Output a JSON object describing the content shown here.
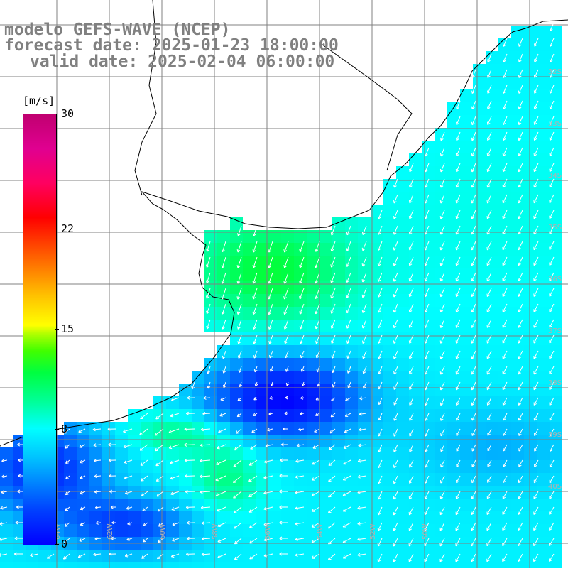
{
  "title": {
    "line1": "modelo GEFS-WAVE (NCEP)",
    "line2": "forecast date: 2025-01-23 18:00:00",
    "line3": "valid date: 2025-02-04 06:00:00"
  },
  "colorbar": {
    "unit": "[m/s]",
    "ticks": [
      {
        "label": "30",
        "value": 30
      },
      {
        "label": "22",
        "value": 22
      },
      {
        "label": "15",
        "value": 15
      },
      {
        "label": "8",
        "value": 8
      },
      {
        "label": "0",
        "value": 0
      }
    ],
    "min": 0,
    "max": 30
  },
  "colors": {
    "coast": "#000000",
    "grid": "#808080",
    "arrows": "#ffffff",
    "land": "#ffffff"
  },
  "map": {
    "type": "wind speed and direction field",
    "lat_labels": [
      "32S",
      "33S",
      "34S",
      "35S",
      "36S",
      "37S",
      "38S",
      "39S",
      "40S"
    ],
    "lon_labels": [
      "64W",
      "62W",
      "60W",
      "58W",
      "56W",
      "54W",
      "52W",
      "50W"
    ]
  }
}
